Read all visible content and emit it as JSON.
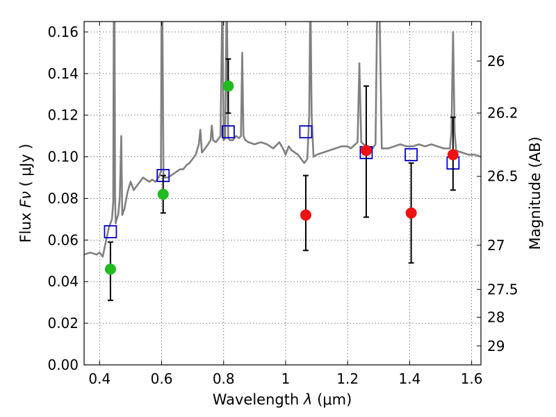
{
  "chart_data": {
    "type": "scatter",
    "xlabel_prefix": "Wavelength",
    "xlabel_symbol": "λ",
    "xlabel_unit": "(μm)",
    "ylabel_prefix": "Flux",
    "ylabel_symbol": "Fν",
    "ylabel_unit": "( μJy )",
    "y2label": "Magnitude (AB)",
    "xlim": [
      0.35,
      1.63
    ],
    "ylim": [
      0.0,
      0.165
    ],
    "grid": true,
    "x_ticks": [
      0.4,
      0.6,
      0.8,
      1.0,
      1.2,
      1.4,
      1.6
    ],
    "x_tick_labels": [
      "0.4",
      "0.6",
      "0.8",
      "1",
      "1.2",
      "1.4",
      "1.6"
    ],
    "y_ticks": [
      0.0,
      0.02,
      0.04,
      0.06,
      0.08,
      0.1,
      0.12,
      0.14,
      0.16
    ],
    "y_tick_labels": [
      "0.00",
      "0.02",
      "0.04",
      "0.06",
      "0.08",
      "0.10",
      "0.12",
      "0.14",
      "0.16"
    ],
    "y2_ticks": [
      {
        "label": "26",
        "flux": 0.146
      },
      {
        "label": "26.2",
        "flux": 0.121
      },
      {
        "label": "26.5",
        "flux": 0.0906
      },
      {
        "label": "27",
        "flux": 0.0575
      },
      {
        "label": "27.5",
        "flux": 0.0363
      },
      {
        "label": "28",
        "flux": 0.0229
      },
      {
        "label": "29",
        "flux": 0.0091
      }
    ],
    "model_color": "#808080",
    "model_spectrum": [
      [
        0.35,
        0.053
      ],
      [
        0.37,
        0.054
      ],
      [
        0.39,
        0.053
      ],
      [
        0.4,
        0.054
      ],
      [
        0.41,
        0.052
      ],
      [
        0.42,
        0.059
      ],
      [
        0.43,
        0.066
      ],
      [
        0.435,
        0.068
      ],
      [
        0.44,
        0.07
      ],
      [
        0.444,
        0.078
      ],
      [
        0.446,
        0.18
      ],
      [
        0.448,
        0.18
      ],
      [
        0.45,
        0.08
      ],
      [
        0.452,
        0.068
      ],
      [
        0.455,
        0.07
      ],
      [
        0.46,
        0.072
      ],
      [
        0.465,
        0.08
      ],
      [
        0.47,
        0.11
      ],
      [
        0.473,
        0.072
      ],
      [
        0.48,
        0.075
      ],
      [
        0.49,
        0.083
      ],
      [
        0.5,
        0.088
      ],
      [
        0.51,
        0.084
      ],
      [
        0.52,
        0.086
      ],
      [
        0.53,
        0.088
      ],
      [
        0.54,
        0.09
      ],
      [
        0.55,
        0.089
      ],
      [
        0.56,
        0.088
      ],
      [
        0.57,
        0.089
      ],
      [
        0.58,
        0.088
      ],
      [
        0.59,
        0.09
      ],
      [
        0.598,
        0.093
      ],
      [
        0.6,
        0.18
      ],
      [
        0.602,
        0.18
      ],
      [
        0.606,
        0.092
      ],
      [
        0.61,
        0.09
      ],
      [
        0.62,
        0.09
      ],
      [
        0.63,
        0.091
      ],
      [
        0.64,
        0.092
      ],
      [
        0.65,
        0.093
      ],
      [
        0.66,
        0.094
      ],
      [
        0.67,
        0.094
      ],
      [
        0.68,
        0.096
      ],
      [
        0.69,
        0.097
      ],
      [
        0.7,
        0.099
      ],
      [
        0.71,
        0.101
      ],
      [
        0.72,
        0.106
      ],
      [
        0.725,
        0.113
      ],
      [
        0.73,
        0.102
      ],
      [
        0.74,
        0.104
      ],
      [
        0.75,
        0.106
      ],
      [
        0.758,
        0.108
      ],
      [
        0.762,
        0.115
      ],
      [
        0.766,
        0.108
      ],
      [
        0.775,
        0.107
      ],
      [
        0.785,
        0.109
      ],
      [
        0.79,
        0.11
      ],
      [
        0.796,
        0.18
      ],
      [
        0.8,
        0.108
      ],
      [
        0.805,
        0.109
      ],
      [
        0.81,
        0.18
      ],
      [
        0.815,
        0.109
      ],
      [
        0.82,
        0.108
      ],
      [
        0.83,
        0.108
      ],
      [
        0.84,
        0.11
      ],
      [
        0.85,
        0.109
      ],
      [
        0.856,
        0.11
      ],
      [
        0.86,
        0.15
      ],
      [
        0.864,
        0.11
      ],
      [
        0.87,
        0.108
      ],
      [
        0.88,
        0.107
      ],
      [
        0.9,
        0.106
      ],
      [
        0.92,
        0.107
      ],
      [
        0.94,
        0.106
      ],
      [
        0.96,
        0.104
      ],
      [
        0.98,
        0.107
      ],
      [
        0.995,
        0.103
      ],
      [
        1.0,
        0.101
      ],
      [
        1.01,
        0.105
      ],
      [
        1.02,
        0.103
      ],
      [
        1.04,
        0.101
      ],
      [
        1.05,
        0.099
      ],
      [
        1.06,
        0.097
      ],
      [
        1.07,
        0.099
      ],
      [
        1.076,
        0.12
      ],
      [
        1.08,
        0.18
      ],
      [
        1.084,
        0.12
      ],
      [
        1.09,
        0.1
      ],
      [
        1.1,
        0.101
      ],
      [
        1.12,
        0.102
      ],
      [
        1.14,
        0.103
      ],
      [
        1.16,
        0.104
      ],
      [
        1.18,
        0.105
      ],
      [
        1.2,
        0.105
      ],
      [
        1.21,
        0.104
      ],
      [
        1.225,
        0.106
      ],
      [
        1.232,
        0.107
      ],
      [
        1.238,
        0.145
      ],
      [
        1.244,
        0.107
      ],
      [
        1.26,
        0.105
      ],
      [
        1.28,
        0.104
      ],
      [
        1.29,
        0.106
      ],
      [
        1.296,
        0.18
      ],
      [
        1.302,
        0.18
      ],
      [
        1.31,
        0.104
      ],
      [
        1.33,
        0.104
      ],
      [
        1.35,
        0.105
      ],
      [
        1.37,
        0.106
      ],
      [
        1.39,
        0.105
      ],
      [
        1.41,
        0.105
      ],
      [
        1.43,
        0.106
      ],
      [
        1.45,
        0.105
      ],
      [
        1.47,
        0.106
      ],
      [
        1.49,
        0.105
      ],
      [
        1.51,
        0.104
      ],
      [
        1.53,
        0.104
      ],
      [
        1.535,
        0.112
      ],
      [
        1.54,
        0.16
      ],
      [
        1.545,
        0.112
      ],
      [
        1.55,
        0.103
      ],
      [
        1.57,
        0.102
      ],
      [
        1.59,
        0.101
      ],
      [
        1.61,
        0.101
      ],
      [
        1.63,
        0.1
      ]
    ],
    "synthetic_photometry": {
      "color": "#0000cc",
      "points": [
        {
          "x": 0.435,
          "y": 0.064
        },
        {
          "x": 0.605,
          "y": 0.091
        },
        {
          "x": 0.815,
          "y": 0.112
        },
        {
          "x": 1.065,
          "y": 0.112
        },
        {
          "x": 1.26,
          "y": 0.102
        },
        {
          "x": 1.405,
          "y": 0.101
        },
        {
          "x": 1.54,
          "y": 0.097
        }
      ]
    },
    "observed_photometry": [
      {
        "x": 0.435,
        "y": 0.046,
        "err_low": 0.031,
        "err_high": 0.059,
        "color": "#22bb22"
      },
      {
        "x": 0.605,
        "y": 0.082,
        "err_low": 0.073,
        "err_high": 0.091,
        "color": "#22bb22"
      },
      {
        "x": 0.815,
        "y": 0.134,
        "err_low": 0.121,
        "err_high": 0.147,
        "color": "#22bb22"
      },
      {
        "x": 1.065,
        "y": 0.072,
        "err_low": 0.055,
        "err_high": 0.091,
        "color": "#ee1111"
      },
      {
        "x": 1.26,
        "y": 0.103,
        "err_low": 0.071,
        "err_high": 0.134,
        "color": "#ee1111"
      },
      {
        "x": 1.405,
        "y": 0.073,
        "err_low": 0.049,
        "err_high": 0.097,
        "color": "#ee1111"
      },
      {
        "x": 1.54,
        "y": 0.101,
        "err_low": 0.084,
        "err_high": 0.119,
        "color": "#ee1111"
      }
    ]
  }
}
